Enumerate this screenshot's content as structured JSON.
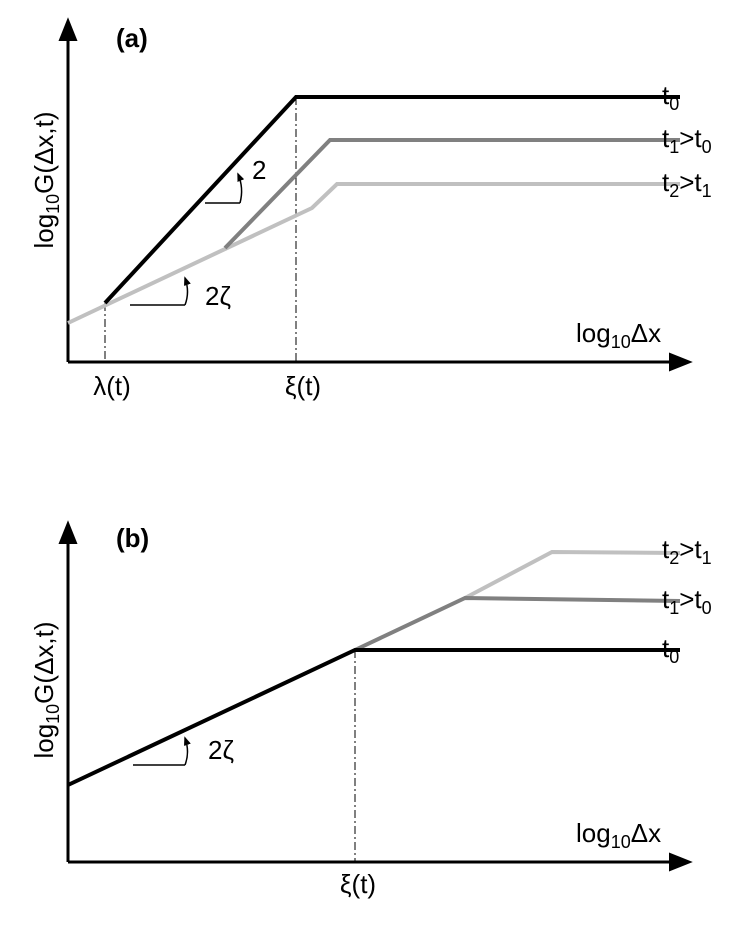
{
  "panels": [
    {
      "label": "(a)",
      "y_axis_label": [
        "log",
        "10",
        "G(Δx,t)"
      ],
      "x_axis_label": [
        "log",
        "10",
        "Δx"
      ],
      "curve_labels": [
        [
          "t",
          "0"
        ],
        [
          "t",
          "1",
          ">t",
          "0"
        ],
        [
          "t",
          "2",
          ">t",
          "1"
        ]
      ],
      "slope_labels": [
        "2",
        "2ζ"
      ],
      "x_markers": [
        "λ(t)",
        "ξ(t)"
      ]
    },
    {
      "label": "(b)",
      "y_axis_label": [
        "log",
        "10",
        "G(Δx,t)"
      ],
      "x_axis_label": [
        "log",
        "10",
        "Δx"
      ],
      "curve_labels": [
        [
          "t",
          "2",
          ">t",
          "1"
        ],
        [
          "t",
          "1",
          ">t",
          "0"
        ],
        [
          "t",
          "0"
        ]
      ],
      "slope_labels": [
        "2ζ"
      ],
      "x_markers": [
        "ξ(t)"
      ]
    }
  ]
}
